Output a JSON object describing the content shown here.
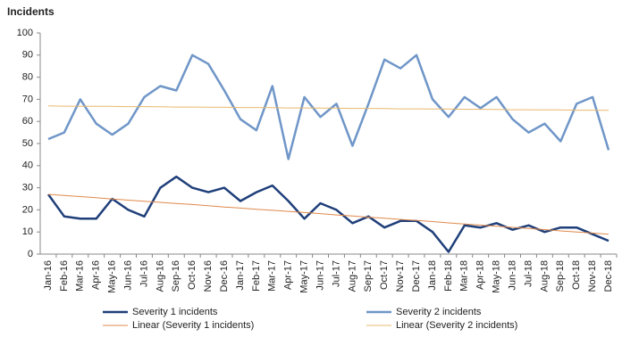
{
  "chart_data": {
    "type": "line",
    "title": "Incidents",
    "categories": [
      "Jan-16",
      "Feb-16",
      "Mar-16",
      "Apr-16",
      "May-16",
      "Jun-16",
      "Jul-16",
      "Aug-16",
      "Sep-16",
      "Oct-16",
      "Nov-16",
      "Dec-16",
      "Jan-17",
      "Feb-17",
      "Mar-17",
      "Apr-17",
      "May-17",
      "Jun-17",
      "Jul-17",
      "Aug-17",
      "Sep-17",
      "Oct-17",
      "Nov-17",
      "Dec-17",
      "Jan-18",
      "Feb-18",
      "Mar-18",
      "Apr-18",
      "May-18",
      "Jun-18",
      "Jul-18",
      "Aug-18",
      "Sep-18",
      "Oct-18",
      "Nov-18",
      "Dec-18"
    ],
    "series": [
      {
        "name": "Severity 1 incidents",
        "color": "#1f3f7a",
        "width": 2.5,
        "values": [
          27,
          17,
          16,
          16,
          25,
          20,
          17,
          30,
          35,
          30,
          28,
          30,
          24,
          28,
          31,
          24,
          16,
          23,
          20,
          14,
          17,
          12,
          15,
          15,
          10,
          1,
          13,
          12,
          14,
          11,
          13,
          10,
          12,
          12,
          9,
          6
        ]
      },
      {
        "name": "Severity 2 incidents",
        "color": "#6f96c8",
        "width": 2.5,
        "values": [
          52,
          55,
          70,
          59,
          54,
          59,
          71,
          76,
          74,
          90,
          86,
          74,
          61,
          56,
          76,
          43,
          71,
          62,
          68,
          49,
          68,
          88,
          84,
          90,
          70,
          62,
          71,
          66,
          71,
          61,
          55,
          59,
          51,
          68,
          71,
          47
        ]
      },
      {
        "name": "Linear (Severity 1 incidents)",
        "color": "#e0894a",
        "width": 1,
        "values": [
          27,
          26.5,
          26,
          25.5,
          24.9,
          24.4,
          23.9,
          23.4,
          22.9,
          22.4,
          21.9,
          21.3,
          20.8,
          20.3,
          19.8,
          19.3,
          18.8,
          18.3,
          17.7,
          17.2,
          16.7,
          16.2,
          15.7,
          15.2,
          14.7,
          14.1,
          13.6,
          13.1,
          12.6,
          12.1,
          11.6,
          11.1,
          10.5,
          10,
          9.5,
          9
        ]
      },
      {
        "name": "Linear (Severity 2 incidents)",
        "color": "#e8b86c",
        "width": 1,
        "values": [
          67,
          66.9,
          66.9,
          66.8,
          66.8,
          66.7,
          66.7,
          66.6,
          66.5,
          66.5,
          66.4,
          66.4,
          66.3,
          66.3,
          66.2,
          66.1,
          66.1,
          66,
          66,
          65.9,
          65.9,
          65.8,
          65.7,
          65.7,
          65.6,
          65.6,
          65.5,
          65.5,
          65.4,
          65.3,
          65.3,
          65.2,
          65.2,
          65.1,
          65.1,
          65
        ]
      }
    ],
    "ylim": [
      0,
      100
    ],
    "yticks": [
      0,
      10,
      20,
      30,
      40,
      50,
      60,
      70,
      80,
      90,
      100
    ],
    "grid": false
  }
}
